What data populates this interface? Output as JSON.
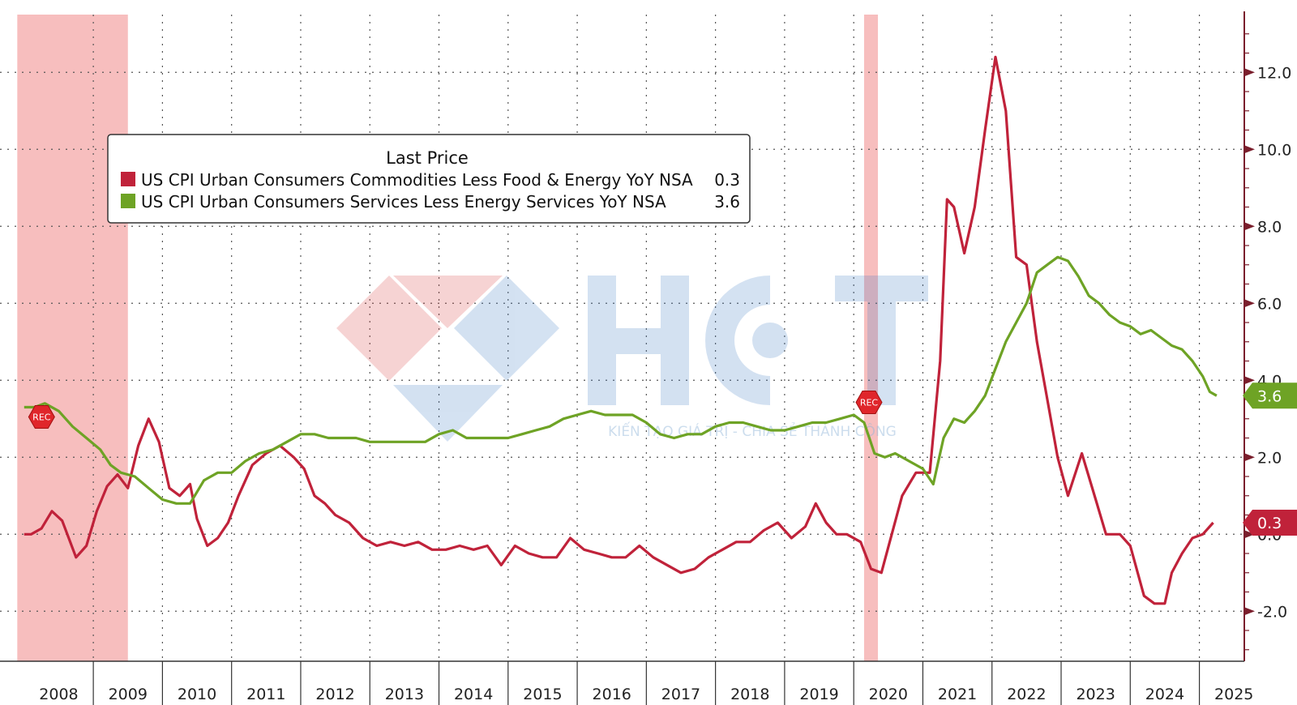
{
  "chart_data": {
    "type": "line",
    "legend_title": "Last Price",
    "legend_placement": "top-left",
    "grid": true,
    "x_axis": {
      "labels": [
        "2008",
        "2009",
        "2010",
        "2011",
        "2012",
        "2013",
        "2014",
        "2015",
        "2016",
        "2017",
        "2018",
        "2019",
        "2020",
        "2021",
        "2022",
        "2023",
        "2024",
        "2025"
      ]
    },
    "y_axis": {
      "side": "right",
      "range": [
        -3.3,
        13.5
      ],
      "ticks": [
        -2.0,
        0.0,
        2.0,
        4.0,
        6.0,
        8.0,
        10.0,
        12.0
      ],
      "tick_labels": [
        "-2.0",
        "0.0",
        "2.0",
        "4.0",
        "6.0",
        "8.0",
        "10.0",
        "12.0"
      ]
    },
    "recession_shading": [
      {
        "start": 2007.9,
        "end": 2009.5,
        "label": "REC"
      },
      {
        "start": 2020.15,
        "end": 2020.35,
        "label": "REC"
      }
    ],
    "series": [
      {
        "name": "US CPI Urban Consumers Commodities Less Food & Energy YoY NSA",
        "last": "0.3",
        "last_value": 0.3,
        "color": "#c0223a",
        "points": [
          [
            2008.0,
            0.0
          ],
          [
            2008.1,
            0.0
          ],
          [
            2008.25,
            0.15
          ],
          [
            2008.4,
            0.6
          ],
          [
            2008.55,
            0.35
          ],
          [
            2008.75,
            -0.6
          ],
          [
            2008.9,
            -0.3
          ],
          [
            2009.05,
            0.6
          ],
          [
            2009.2,
            1.25
          ],
          [
            2009.35,
            1.55
          ],
          [
            2009.5,
            1.2
          ],
          [
            2009.65,
            2.3
          ],
          [
            2009.8,
            3.0
          ],
          [
            2009.95,
            2.4
          ],
          [
            2010.1,
            1.2
          ],
          [
            2010.25,
            1.0
          ],
          [
            2010.4,
            1.3
          ],
          [
            2010.5,
            0.4
          ],
          [
            2010.65,
            -0.3
          ],
          [
            2010.8,
            -0.1
          ],
          [
            2010.95,
            0.3
          ],
          [
            2011.1,
            1.0
          ],
          [
            2011.3,
            1.8
          ],
          [
            2011.5,
            2.1
          ],
          [
            2011.7,
            2.3
          ],
          [
            2011.9,
            2.0
          ],
          [
            2012.05,
            1.7
          ],
          [
            2012.2,
            1.0
          ],
          [
            2012.35,
            0.8
          ],
          [
            2012.5,
            0.5
          ],
          [
            2012.7,
            0.3
          ],
          [
            2012.9,
            -0.1
          ],
          [
            2013.1,
            -0.3
          ],
          [
            2013.3,
            -0.2
          ],
          [
            2013.5,
            -0.3
          ],
          [
            2013.7,
            -0.2
          ],
          [
            2013.9,
            -0.4
          ],
          [
            2014.1,
            -0.4
          ],
          [
            2014.3,
            -0.3
          ],
          [
            2014.5,
            -0.4
          ],
          [
            2014.7,
            -0.3
          ],
          [
            2014.9,
            -0.8
          ],
          [
            2015.1,
            -0.3
          ],
          [
            2015.3,
            -0.5
          ],
          [
            2015.5,
            -0.6
          ],
          [
            2015.7,
            -0.6
          ],
          [
            2015.9,
            -0.1
          ],
          [
            2016.1,
            -0.4
          ],
          [
            2016.3,
            -0.5
          ],
          [
            2016.5,
            -0.6
          ],
          [
            2016.7,
            -0.6
          ],
          [
            2016.9,
            -0.3
          ],
          [
            2017.1,
            -0.6
          ],
          [
            2017.3,
            -0.8
          ],
          [
            2017.5,
            -1.0
          ],
          [
            2017.7,
            -0.9
          ],
          [
            2017.9,
            -0.6
          ],
          [
            2018.1,
            -0.4
          ],
          [
            2018.3,
            -0.2
          ],
          [
            2018.5,
            -0.2
          ],
          [
            2018.7,
            0.1
          ],
          [
            2018.9,
            0.3
          ],
          [
            2019.1,
            -0.1
          ],
          [
            2019.3,
            0.2
          ],
          [
            2019.45,
            0.8
          ],
          [
            2019.6,
            0.3
          ],
          [
            2019.75,
            0.0
          ],
          [
            2019.9,
            0.0
          ],
          [
            2020.1,
            -0.2
          ],
          [
            2020.25,
            -0.9
          ],
          [
            2020.4,
            -1.0
          ],
          [
            2020.55,
            0.0
          ],
          [
            2020.7,
            1.0
          ],
          [
            2020.9,
            1.6
          ],
          [
            2021.1,
            1.6
          ],
          [
            2021.25,
            4.5
          ],
          [
            2021.35,
            8.7
          ],
          [
            2021.45,
            8.5
          ],
          [
            2021.6,
            7.3
          ],
          [
            2021.75,
            8.5
          ],
          [
            2021.9,
            10.5
          ],
          [
            2022.05,
            12.4
          ],
          [
            2022.2,
            11.0
          ],
          [
            2022.35,
            7.2
          ],
          [
            2022.5,
            7.0
          ],
          [
            2022.65,
            5.0
          ],
          [
            2022.8,
            3.5
          ],
          [
            2022.95,
            2.0
          ],
          [
            2023.1,
            1.0
          ],
          [
            2023.3,
            2.1
          ],
          [
            2023.5,
            0.9
          ],
          [
            2023.65,
            0.0
          ],
          [
            2023.85,
            0.0
          ],
          [
            2024.0,
            -0.3
          ],
          [
            2024.2,
            -1.6
          ],
          [
            2024.35,
            -1.8
          ],
          [
            2024.5,
            -1.8
          ],
          [
            2024.6,
            -1.0
          ],
          [
            2024.75,
            -0.5
          ],
          [
            2024.9,
            -0.1
          ],
          [
            2025.05,
            0.0
          ],
          [
            2025.2,
            0.3
          ]
        ]
      },
      {
        "name": "US CPI Urban Consumers Services Less Energy Services YoY NSA",
        "last": "3.6",
        "last_value": 3.6,
        "color": "#6ea325",
        "points": [
          [
            2008.0,
            3.3
          ],
          [
            2008.15,
            3.3
          ],
          [
            2008.3,
            3.4
          ],
          [
            2008.5,
            3.2
          ],
          [
            2008.7,
            2.8
          ],
          [
            2008.9,
            2.5
          ],
          [
            2009.1,
            2.2
          ],
          [
            2009.25,
            1.8
          ],
          [
            2009.4,
            1.6
          ],
          [
            2009.6,
            1.5
          ],
          [
            2009.8,
            1.2
          ],
          [
            2010.0,
            0.9
          ],
          [
            2010.2,
            0.8
          ],
          [
            2010.4,
            0.8
          ],
          [
            2010.6,
            1.4
          ],
          [
            2010.8,
            1.6
          ],
          [
            2011.0,
            1.6
          ],
          [
            2011.2,
            1.9
          ],
          [
            2011.4,
            2.1
          ],
          [
            2011.6,
            2.2
          ],
          [
            2011.8,
            2.4
          ],
          [
            2012.0,
            2.6
          ],
          [
            2012.2,
            2.6
          ],
          [
            2012.4,
            2.5
          ],
          [
            2012.6,
            2.5
          ],
          [
            2012.8,
            2.5
          ],
          [
            2013.0,
            2.4
          ],
          [
            2013.2,
            2.4
          ],
          [
            2013.4,
            2.4
          ],
          [
            2013.6,
            2.4
          ],
          [
            2013.8,
            2.4
          ],
          [
            2014.0,
            2.6
          ],
          [
            2014.2,
            2.7
          ],
          [
            2014.4,
            2.5
          ],
          [
            2014.6,
            2.5
          ],
          [
            2014.8,
            2.5
          ],
          [
            2015.0,
            2.5
          ],
          [
            2015.2,
            2.6
          ],
          [
            2015.4,
            2.7
          ],
          [
            2015.6,
            2.8
          ],
          [
            2015.8,
            3.0
          ],
          [
            2016.0,
            3.1
          ],
          [
            2016.2,
            3.2
          ],
          [
            2016.4,
            3.1
          ],
          [
            2016.6,
            3.1
          ],
          [
            2016.8,
            3.1
          ],
          [
            2017.0,
            2.9
          ],
          [
            2017.2,
            2.6
          ],
          [
            2017.4,
            2.5
          ],
          [
            2017.6,
            2.6
          ],
          [
            2017.8,
            2.6
          ],
          [
            2018.0,
            2.8
          ],
          [
            2018.2,
            2.9
          ],
          [
            2018.4,
            2.9
          ],
          [
            2018.6,
            2.8
          ],
          [
            2018.8,
            2.7
          ],
          [
            2019.0,
            2.7
          ],
          [
            2019.2,
            2.8
          ],
          [
            2019.4,
            2.9
          ],
          [
            2019.6,
            2.9
          ],
          [
            2019.8,
            3.0
          ],
          [
            2020.0,
            3.1
          ],
          [
            2020.15,
            2.9
          ],
          [
            2020.3,
            2.1
          ],
          [
            2020.45,
            2.0
          ],
          [
            2020.6,
            2.1
          ],
          [
            2020.8,
            1.9
          ],
          [
            2021.0,
            1.7
          ],
          [
            2021.15,
            1.3
          ],
          [
            2021.3,
            2.5
          ],
          [
            2021.45,
            3.0
          ],
          [
            2021.6,
            2.9
          ],
          [
            2021.75,
            3.2
          ],
          [
            2021.9,
            3.6
          ],
          [
            2022.05,
            4.3
          ],
          [
            2022.2,
            5.0
          ],
          [
            2022.35,
            5.5
          ],
          [
            2022.5,
            6.0
          ],
          [
            2022.65,
            6.8
          ],
          [
            2022.8,
            7.0
          ],
          [
            2022.95,
            7.2
          ],
          [
            2023.1,
            7.1
          ],
          [
            2023.25,
            6.7
          ],
          [
            2023.4,
            6.2
          ],
          [
            2023.55,
            6.0
          ],
          [
            2023.7,
            5.7
          ],
          [
            2023.85,
            5.5
          ],
          [
            2024.0,
            5.4
          ],
          [
            2024.15,
            5.2
          ],
          [
            2024.3,
            5.3
          ],
          [
            2024.45,
            5.1
          ],
          [
            2024.6,
            4.9
          ],
          [
            2024.75,
            4.8
          ],
          [
            2024.9,
            4.5
          ],
          [
            2025.05,
            4.1
          ],
          [
            2025.15,
            3.7
          ],
          [
            2025.25,
            3.6
          ]
        ]
      }
    ]
  },
  "watermark": {
    "brand": "HCT",
    "tagline": "KIẾN TẠO GIÁ TRỊ - CHIA SẺ THÀNH CÔNG"
  }
}
